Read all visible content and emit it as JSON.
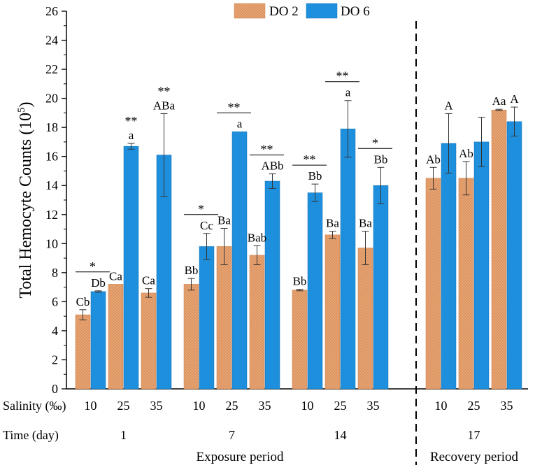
{
  "chart_data": {
    "type": "bar",
    "ylabel": "Total Hemocyte Counts (10",
    "ylabel_sup": "5",
    "ylabel_close": ")",
    "ylim": [
      0,
      26
    ],
    "yticks": [
      "0",
      "2",
      "4",
      "6",
      "8",
      "10",
      "12",
      "14",
      "16",
      "18",
      "20",
      "22",
      "24",
      "26"
    ],
    "row_labels": {
      "salinity": "Salinity (‰)",
      "time": "Time (day)"
    },
    "periods": {
      "exposure": "Exposure period",
      "recovery": "Recovery period"
    },
    "series": [
      {
        "name": "DO 2",
        "color": "#e8a574"
      },
      {
        "name": "DO 6",
        "color": "#1e8fdd"
      }
    ],
    "groups": [
      {
        "day": "1",
        "categories": [
          {
            "salinity": "10",
            "values": [
              5.1,
              6.7
            ],
            "errors": [
              0.35,
              0.05
            ],
            "labels": [
              "Cb",
              "Db"
            ],
            "sig": "*",
            "sig_x": "pair"
          },
          {
            "salinity": "25",
            "values": [
              7.2,
              16.7
            ],
            "errors": [
              0.0,
              0.2
            ],
            "labels": [
              "Ca",
              "a"
            ],
            "sig": "**",
            "sig_x": "blue"
          },
          {
            "salinity": "35",
            "values": [
              6.6,
              16.1
            ],
            "errors": [
              0.3,
              2.85
            ],
            "labels": [
              "Ca",
              "ABa"
            ],
            "sig": "**",
            "sig_x": "blue"
          }
        ]
      },
      {
        "day": "7",
        "categories": [
          {
            "salinity": "10",
            "values": [
              7.2,
              9.8
            ],
            "errors": [
              0.4,
              0.9
            ],
            "labels": [
              "Bb",
              "Cc"
            ],
            "sig": "*",
            "sig_x": "pair"
          },
          {
            "salinity": "25",
            "values": [
              9.8,
              17.7
            ],
            "errors": [
              1.25,
              0.0
            ],
            "labels": [
              "Ba",
              "a"
            ],
            "sig": "**",
            "sig_x": "pair"
          },
          {
            "salinity": "35",
            "values": [
              9.2,
              14.3
            ],
            "errors": [
              0.65,
              0.5
            ],
            "labels": [
              "Bab",
              "ABb"
            ],
            "sig": "**",
            "sig_x": "pair"
          }
        ]
      },
      {
        "day": "14",
        "categories": [
          {
            "salinity": "10",
            "values": [
              6.8,
              13.5
            ],
            "errors": [
              0.05,
              0.6
            ],
            "labels": [
              "Bb",
              "Bb"
            ],
            "sig": "**",
            "sig_x": "pair"
          },
          {
            "salinity": "25",
            "values": [
              10.6,
              17.9
            ],
            "errors": [
              0.25,
              1.95
            ],
            "labels": [
              "Ba",
              "a"
            ],
            "sig": "**",
            "sig_x": "pair"
          },
          {
            "salinity": "35",
            "values": [
              9.7,
              14.0
            ],
            "errors": [
              1.15,
              1.25
            ],
            "labels": [
              "Ba",
              "Bb"
            ],
            "sig": "*",
            "sig_x": "pair"
          }
        ]
      },
      {
        "day": "17",
        "categories": [
          {
            "salinity": "10",
            "values": [
              14.5,
              16.9
            ],
            "errors": [
              0.75,
              2.05
            ],
            "labels": [
              "Ab",
              "A"
            ],
            "sig": "",
            "sig_x": "pair"
          },
          {
            "salinity": "25",
            "values": [
              14.5,
              17.0
            ],
            "errors": [
              1.15,
              1.7
            ],
            "labels": [
              "Ab",
              ""
            ],
            "sig": "",
            "sig_x": "pair"
          },
          {
            "salinity": "35",
            "values": [
              19.2,
              18.4
            ],
            "errors": [
              0.05,
              1.0
            ],
            "labels": [
              "Aa",
              "A"
            ],
            "sig": "",
            "sig_x": "pair"
          }
        ]
      }
    ]
  }
}
